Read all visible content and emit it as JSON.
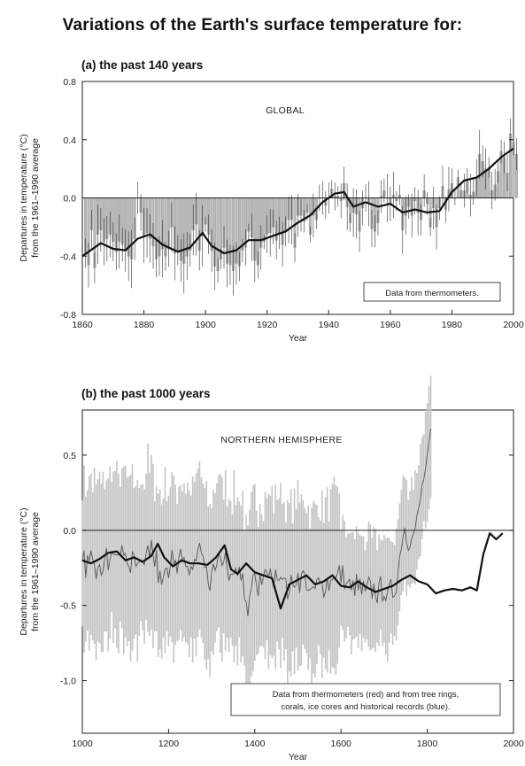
{
  "page": {
    "title": "Variations of the Earth's surface temperature for:"
  },
  "chart_data": [
    {
      "type": "bar",
      "panel_title": "(a) the past 140 years",
      "region_label": "GLOBAL",
      "annotation": "Data from thermometers.",
      "xlabel": "Year",
      "ylabel": [
        "Departures in temperature (°C)",
        "from the 1961–1990 average"
      ],
      "xlim": [
        1860,
        2000
      ],
      "ylim": [
        -0.8,
        0.8
      ],
      "x_ticks": [
        1860,
        1880,
        1900,
        1920,
        1940,
        1960,
        1980,
        2000
      ],
      "y_ticks": [
        -0.8,
        -0.4,
        0.0,
        0.4,
        0.8
      ],
      "y_tick_labels": [
        "-0.8",
        "-0.4",
        "0.0",
        "0.4",
        "0.8"
      ],
      "grid": false,
      "series": [
        {
          "kind": "annual_anomaly_bars",
          "x_start": 1861,
          "values": [
            -0.38,
            -0.46,
            -0.22,
            -0.48,
            -0.25,
            -0.22,
            -0.3,
            -0.28,
            -0.25,
            -0.3,
            -0.37,
            -0.3,
            -0.32,
            -0.36,
            -0.4,
            -0.42,
            -0.28,
            0.0,
            -0.1,
            -0.26,
            -0.24,
            -0.28,
            -0.33,
            -0.42,
            -0.4,
            -0.35,
            -0.4,
            -0.35,
            -0.2,
            -0.38,
            -0.36,
            -0.43,
            -0.45,
            -0.4,
            -0.36,
            -0.22,
            -0.18,
            -0.36,
            -0.26,
            -0.18,
            -0.25,
            -0.36,
            -0.47,
            -0.5,
            -0.42,
            -0.34,
            -0.45,
            -0.46,
            -0.5,
            -0.45,
            -0.47,
            -0.36,
            -0.34,
            -0.23,
            -0.27,
            -0.43,
            -0.46,
            -0.34,
            -0.3,
            -0.25,
            -0.24,
            -0.2,
            -0.29,
            -0.24,
            -0.32,
            -0.23,
            -0.15,
            -0.15,
            -0.34,
            -0.12,
            -0.12,
            -0.16,
            -0.1,
            -0.25,
            -0.12,
            -0.15,
            0.0,
            0.0,
            -0.05,
            0.0,
            0.06,
            0.01,
            0.01,
            -0.02,
            0.1,
            -0.06,
            -0.17,
            -0.1,
            -0.11,
            -0.23,
            -0.07,
            0.0,
            -0.04,
            -0.21,
            -0.23,
            -0.17,
            0.01,
            0.05,
            0.0,
            -0.04,
            0.02,
            -0.02,
            0.02,
            -0.22,
            -0.12,
            -0.06,
            -0.12,
            -0.02,
            -0.1,
            -0.15,
            0.05,
            -0.04,
            -0.2,
            -0.07,
            -0.2,
            -0.07,
            0.08,
            -0.08,
            0.06,
            0.1,
            0.0,
            0.14,
            0.05,
            0.05,
            0.12,
            0.02,
            0.04,
            0.14,
            0.3,
            0.25,
            0.2,
            0.21,
            0.05,
            0.09,
            0.18,
            0.32,
            0.28,
            0.17,
            0.44,
            0.38,
            0.3
          ]
        },
        {
          "kind": "smoothed_curve",
          "x": [
            1860,
            1866,
            1870,
            1874,
            1878,
            1882,
            1886,
            1891,
            1895,
            1899,
            1902,
            1906,
            1910,
            1914,
            1918,
            1922,
            1926,
            1930,
            1934,
            1938,
            1942,
            1945,
            1948,
            1952,
            1956,
            1960,
            1964,
            1968,
            1972,
            1976,
            1980,
            1984,
            1988,
            1992,
            1996,
            2000
          ],
          "y": [
            -0.4,
            -0.31,
            -0.35,
            -0.36,
            -0.28,
            -0.25,
            -0.32,
            -0.37,
            -0.34,
            -0.24,
            -0.33,
            -0.38,
            -0.36,
            -0.29,
            -0.29,
            -0.26,
            -0.23,
            -0.17,
            -0.12,
            -0.03,
            0.03,
            0.04,
            -0.06,
            -0.03,
            -0.06,
            -0.04,
            -0.1,
            -0.08,
            -0.1,
            -0.09,
            0.04,
            0.12,
            0.14,
            0.2,
            0.28,
            0.34
          ]
        }
      ]
    },
    {
      "type": "bar",
      "panel_title": "(b) the past 1000 years",
      "region_label": "NORTHERN HEMISPHERE",
      "annotation": [
        "Data from thermometers (red) and from tree rings,",
        "corals, ice cores and historical records (blue)."
      ],
      "xlabel": "Year",
      "ylabel": [
        "Departures in temperature (°C)",
        "from the 1961–1990 average"
      ],
      "xlim": [
        1000,
        2000
      ],
      "ylim": [
        -1.35,
        0.8
      ],
      "x_ticks": [
        1000,
        1200,
        1400,
        1600,
        1800,
        2000
      ],
      "y_ticks": [
        -1.0,
        -0.5,
        0.0,
        0.5
      ],
      "y_tick_labels": [
        "-1.0",
        "-0.5",
        "0.0",
        "0.5"
      ],
      "grid": false,
      "series": [
        {
          "kind": "annual_reconstruction_with_uncertainty",
          "x_start": 1000,
          "x_step": 4,
          "values": [
            -0.22,
            -0.19,
            -0.26,
            -0.2,
            -0.22,
            -0.16,
            -0.24,
            -0.17,
            -0.28,
            -0.2,
            -0.18,
            -0.25,
            -0.21,
            -0.2,
            -0.17,
            -0.23,
            -0.15,
            -0.11,
            -0.18,
            -0.13,
            -0.16,
            -0.22,
            -0.16,
            -0.12,
            -0.2,
            -0.14,
            -0.21,
            -0.19,
            -0.25,
            -0.18,
            -0.22,
            -0.2,
            -0.27,
            -0.21,
            -0.15,
            -0.18,
            -0.24,
            -0.11,
            -0.05,
            -0.16,
            -0.08,
            -0.17,
            -0.24,
            -0.19,
            -0.3,
            -0.26,
            -0.34,
            -0.25,
            -0.2,
            -0.24,
            -0.27,
            -0.21,
            -0.18,
            -0.26,
            -0.23,
            -0.28,
            -0.22,
            -0.18,
            -0.24,
            -0.2,
            -0.25,
            -0.22,
            -0.29,
            -0.24,
            -0.26,
            -0.2,
            -0.23,
            -0.15,
            -0.1,
            -0.18,
            -0.22,
            -0.29,
            -0.3,
            -0.35,
            -0.4,
            -0.33,
            -0.28,
            -0.25,
            -0.18,
            -0.14,
            -0.22,
            -0.26,
            -0.24,
            -0.2,
            -0.28,
            -0.3,
            -0.26,
            -0.33,
            -0.24,
            -0.3,
            -0.34,
            -0.26,
            -0.36,
            -0.29,
            -0.45,
            -0.52,
            -0.58,
            -0.48,
            -0.36,
            -0.32,
            -0.28,
            -0.35,
            -0.4,
            -0.3,
            -0.33,
            -0.36,
            -0.3,
            -0.26,
            -0.34,
            -0.3,
            -0.28,
            -0.36,
            -0.31,
            -0.27,
            -0.29,
            -0.3,
            -0.27,
            -0.34,
            -0.37,
            -0.42,
            -0.38,
            -0.35,
            -0.38,
            -0.34,
            -0.32,
            -0.3,
            -0.36,
            -0.33,
            -0.28,
            -0.32,
            -0.35,
            -0.38,
            -0.42,
            -0.44,
            -0.38,
            -0.4,
            -0.36,
            -0.34,
            -0.38,
            -0.36,
            -0.4,
            -0.35,
            -0.33,
            -0.37,
            -0.34,
            -0.3,
            -0.28,
            -0.33,
            -0.3,
            -0.27,
            -0.32,
            -0.28,
            -0.34,
            -0.38,
            -0.33,
            -0.36,
            -0.42,
            -0.37,
            -0.39,
            -0.34,
            -0.4,
            -0.36,
            -0.42,
            -0.38,
            -0.44,
            -0.4,
            -0.36,
            -0.38,
            -0.42,
            -0.38,
            -0.4,
            -0.44,
            -0.4,
            -0.36,
            -0.42,
            -0.39,
            -0.44,
            -0.46,
            -0.4,
            -0.38,
            -0.42,
            -0.4,
            -0.36,
            -0.28,
            -0.18,
            -0.08,
            -0.02,
            0.02,
            -0.05,
            -0.08,
            -0.06,
            0.0,
            -0.04,
            0.02,
            0.06,
            0.12,
            0.2,
            0.28,
            0.35,
            0.4,
            0.45,
            0.55,
            0.62
          ]
        },
        {
          "kind": "smoothed_curve",
          "x": [
            1000,
            1020,
            1040,
            1060,
            1080,
            1100,
            1120,
            1140,
            1160,
            1175,
            1190,
            1210,
            1230,
            1250,
            1270,
            1290,
            1310,
            1330,
            1345,
            1360,
            1380,
            1400,
            1420,
            1440,
            1460,
            1480,
            1500,
            1520,
            1540,
            1560,
            1580,
            1600,
            1620,
            1640,
            1660,
            1680,
            1700,
            1720,
            1740,
            1760,
            1780,
            1800,
            1820,
            1840,
            1860,
            1880,
            1900,
            1915,
            1930,
            1945,
            1960,
            1975
          ],
          "y": [
            -0.2,
            -0.22,
            -0.19,
            -0.15,
            -0.14,
            -0.2,
            -0.18,
            -0.21,
            -0.17,
            -0.09,
            -0.18,
            -0.24,
            -0.2,
            -0.22,
            -0.22,
            -0.23,
            -0.18,
            -0.1,
            -0.26,
            -0.29,
            -0.22,
            -0.28,
            -0.3,
            -0.32,
            -0.52,
            -0.36,
            -0.33,
            -0.3,
            -0.36,
            -0.34,
            -0.3,
            -0.37,
            -0.38,
            -0.34,
            -0.38,
            -0.41,
            -0.39,
            -0.37,
            -0.33,
            -0.3,
            -0.34,
            -0.36,
            -0.42,
            -0.4,
            -0.39,
            -0.4,
            -0.38,
            -0.4,
            -0.16,
            -0.02,
            -0.06,
            -0.02
          ]
        }
      ]
    }
  ]
}
